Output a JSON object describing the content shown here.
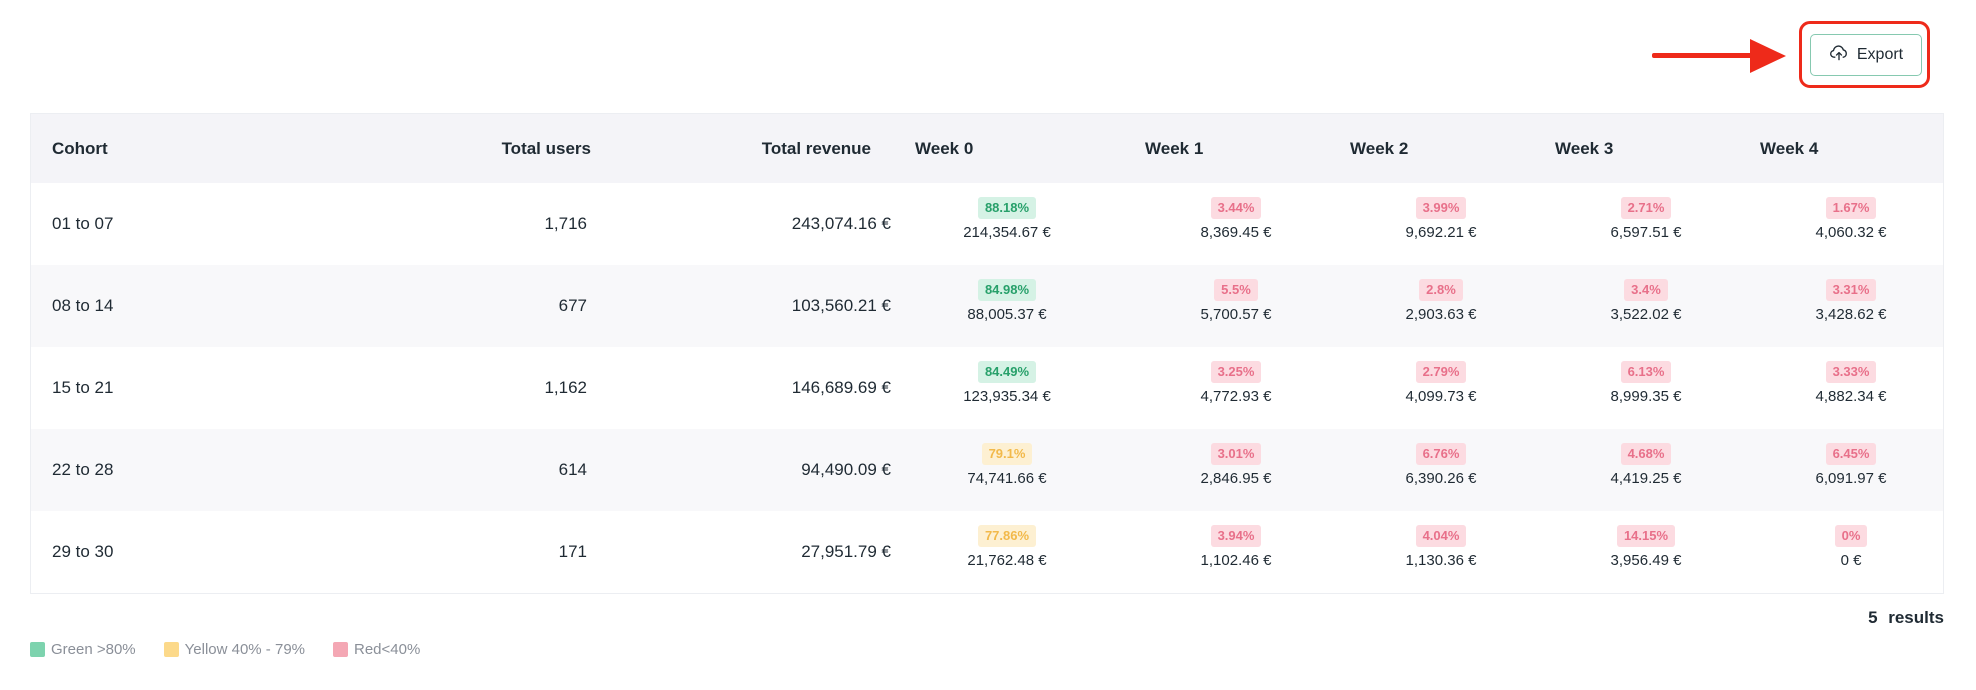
{
  "toolbar": {
    "export_label": "Export",
    "export_icon": "cloud-upload-icon"
  },
  "table": {
    "headers": {
      "cohort": "Cohort",
      "total_users": "Total users",
      "total_revenue": "Total revenue",
      "week0": "Week 0",
      "week1": "Week 1",
      "week2": "Week 2",
      "week3": "Week 3",
      "week4": "Week 4"
    },
    "rows": [
      {
        "cohort": "01 to 07",
        "users": "1,716",
        "revenue": "243,074.16 €",
        "weeks": [
          {
            "pct": "88.18%",
            "amt": "214,354.67 €",
            "level": "green"
          },
          {
            "pct": "3.44%",
            "amt": "8,369.45 €",
            "level": "red"
          },
          {
            "pct": "3.99%",
            "amt": "9,692.21 €",
            "level": "red"
          },
          {
            "pct": "2.71%",
            "amt": "6,597.51 €",
            "level": "red"
          },
          {
            "pct": "1.67%",
            "amt": "4,060.32 €",
            "level": "red"
          }
        ]
      },
      {
        "cohort": "08 to 14",
        "users": "677",
        "revenue": "103,560.21 €",
        "weeks": [
          {
            "pct": "84.98%",
            "amt": "88,005.37 €",
            "level": "green"
          },
          {
            "pct": "5.5%",
            "amt": "5,700.57 €",
            "level": "red"
          },
          {
            "pct": "2.8%",
            "amt": "2,903.63 €",
            "level": "red"
          },
          {
            "pct": "3.4%",
            "amt": "3,522.02 €",
            "level": "red"
          },
          {
            "pct": "3.31%",
            "amt": "3,428.62 €",
            "level": "red"
          }
        ]
      },
      {
        "cohort": "15 to 21",
        "users": "1,162",
        "revenue": "146,689.69 €",
        "weeks": [
          {
            "pct": "84.49%",
            "amt": "123,935.34 €",
            "level": "green"
          },
          {
            "pct": "3.25%",
            "amt": "4,772.93 €",
            "level": "red"
          },
          {
            "pct": "2.79%",
            "amt": "4,099.73 €",
            "level": "red"
          },
          {
            "pct": "6.13%",
            "amt": "8,999.35 €",
            "level": "red"
          },
          {
            "pct": "3.33%",
            "amt": "4,882.34 €",
            "level": "red"
          }
        ]
      },
      {
        "cohort": "22 to 28",
        "users": "614",
        "revenue": "94,490.09 €",
        "weeks": [
          {
            "pct": "79.1%",
            "amt": "74,741.66 €",
            "level": "yellow"
          },
          {
            "pct": "3.01%",
            "amt": "2,846.95 €",
            "level": "red"
          },
          {
            "pct": "6.76%",
            "amt": "6,390.26 €",
            "level": "red"
          },
          {
            "pct": "4.68%",
            "amt": "4,419.25 €",
            "level": "red"
          },
          {
            "pct": "6.45%",
            "amt": "6,091.97 €",
            "level": "red"
          }
        ]
      },
      {
        "cohort": "29 to 30",
        "users": "171",
        "revenue": "27,951.79 €",
        "weeks": [
          {
            "pct": "77.86%",
            "amt": "21,762.48 €",
            "level": "yellow"
          },
          {
            "pct": "3.94%",
            "amt": "1,102.46 €",
            "level": "red"
          },
          {
            "pct": "4.04%",
            "amt": "1,130.36 €",
            "level": "red"
          },
          {
            "pct": "14.15%",
            "amt": "3,956.49 €",
            "level": "red"
          },
          {
            "pct": "0%",
            "amt": "0 €",
            "level": "red"
          }
        ]
      }
    ]
  },
  "results": {
    "text": "5 results"
  },
  "legend": [
    {
      "label": "Green >80%",
      "color": "#7dd3ae"
    },
    {
      "label": "Yellow 40% - 79%",
      "color": "#fcd98a"
    },
    {
      "label": "Red<40%",
      "color": "#f4a7b4"
    }
  ],
  "colors": {
    "highlight": "#ee2a1a",
    "button_border": "#86c9b0"
  }
}
